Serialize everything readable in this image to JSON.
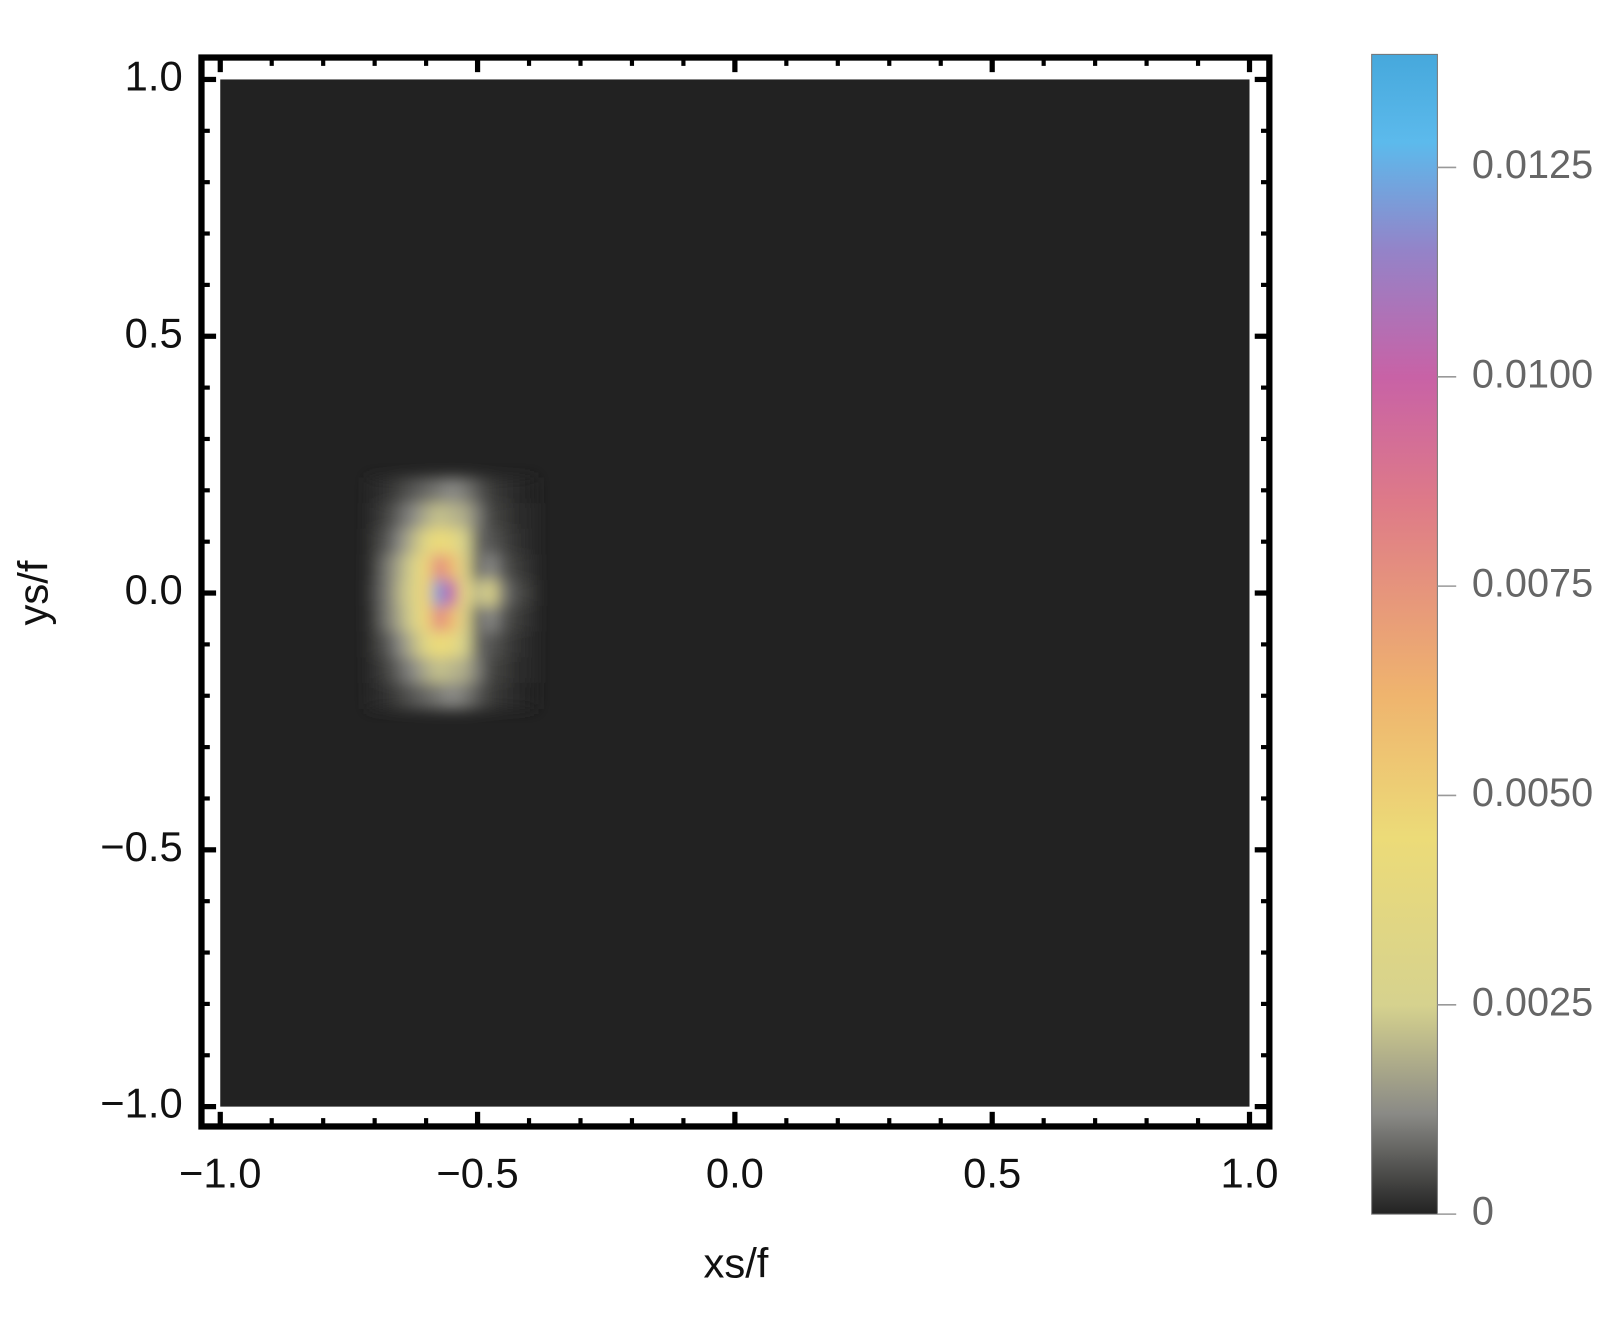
{
  "chart_data": {
    "type": "density",
    "xlabel": "xs/f",
    "ylabel": "ys/f",
    "xlim": [
      -1,
      1
    ],
    "ylim": [
      -1,
      1
    ],
    "xticks": [
      {
        "value": -1,
        "label": "−1.0"
      },
      {
        "value": -0.5,
        "label": "−0.5"
      },
      {
        "value": 0,
        "label": "0.0"
      },
      0.5,
      {
        "value": 1,
        "label": "1.0"
      }
    ],
    "yticks": [
      {
        "value": -1,
        "label": "−1.0"
      },
      {
        "value": -0.5,
        "label": "−0.5"
      },
      {
        "value": 0,
        "label": "0.0"
      },
      0.5,
      {
        "value": 1,
        "label": "1.0"
      }
    ],
    "minor_ticks": [
      -0.9,
      -0.8,
      -0.7,
      -0.6,
      -0.4,
      -0.3,
      -0.2,
      -0.1,
      0.1,
      0.2,
      0.3,
      0.4,
      0.6,
      0.7,
      0.8,
      0.9
    ],
    "x": [
      -0.7,
      -0.675,
      -0.65,
      -0.625,
      -0.6,
      -0.575,
      -0.55,
      -0.525,
      -0.5,
      -0.475,
      -0.45,
      -0.425,
      -0.4
    ],
    "y": [
      0.2,
      0.15,
      0.1,
      0.05,
      0,
      -0.05,
      -0.1,
      -0.15,
      -0.2
    ],
    "values": [
      [
        0.0001,
        0.0002,
        0.0004,
        0.0006,
        0.0008,
        0.001,
        0.0012,
        0.001,
        0.0006,
        0.0003,
        0.0002,
        0.0001,
        0
      ],
      [
        0.0002,
        0.0004,
        0.0008,
        0.0012,
        0.0018,
        0.0022,
        0.002,
        0.0018,
        0.001,
        0.0004,
        0.0003,
        0.0001,
        0.0001
      ],
      [
        0.0003,
        0.0006,
        0.0012,
        0.002,
        0.0035,
        0.0045,
        0.004,
        0.0025,
        0.0008,
        0.0006,
        0.0004,
        0.0002,
        0.0001
      ],
      [
        0.0004,
        0.001,
        0.0018,
        0.0028,
        0.0048,
        0.008,
        0.006,
        0.003,
        0.0008,
        0.0012,
        0.0006,
        0.0003,
        0.0002
      ],
      [
        0.0005,
        0.001,
        0.002,
        0.003,
        0.005,
        0.012,
        0.01,
        0.004,
        0.002,
        0.003,
        0.001,
        0.0005,
        0.0003
      ],
      [
        0.0004,
        0.001,
        0.0018,
        0.0028,
        0.0048,
        0.008,
        0.006,
        0.003,
        0.0008,
        0.0012,
        0.0006,
        0.0003,
        0.0002
      ],
      [
        0.0003,
        0.0006,
        0.0012,
        0.002,
        0.0035,
        0.0045,
        0.004,
        0.0025,
        0.0008,
        0.0006,
        0.0004,
        0.0002,
        0.0001
      ],
      [
        0.0002,
        0.0004,
        0.0008,
        0.0012,
        0.0018,
        0.0022,
        0.002,
        0.0018,
        0.001,
        0.0004,
        0.0003,
        0.0001,
        0.0001
      ],
      [
        0.0001,
        0.0002,
        0.0004,
        0.0006,
        0.0008,
        0.001,
        0.0012,
        0.001,
        0.0006,
        0.0003,
        0.0002,
        0.0001,
        0
      ]
    ],
    "clim": [
      0,
      0.01385
    ],
    "cticks": [
      0,
      0.0025,
      {
        "value": 0.005,
        "label": "0.0050"
      },
      0.0075,
      {
        "value": 0.01,
        "label": "0.0100"
      },
      0.0125
    ],
    "colorscale": [
      [
        0,
        "#222222"
      ],
      [
        0.0012,
        "#8a8a86"
      ],
      [
        0.0025,
        "#d6d28e"
      ],
      [
        0.0045,
        "#ecdb78"
      ],
      [
        0.0062,
        "#efb46e"
      ],
      [
        0.0085,
        "#de7a88"
      ],
      [
        0.01,
        "#c862a6"
      ],
      [
        0.0115,
        "#9483c8"
      ],
      [
        0.0128,
        "#5cbaec"
      ],
      [
        0.01385,
        "#46a8dc"
      ]
    ]
  }
}
